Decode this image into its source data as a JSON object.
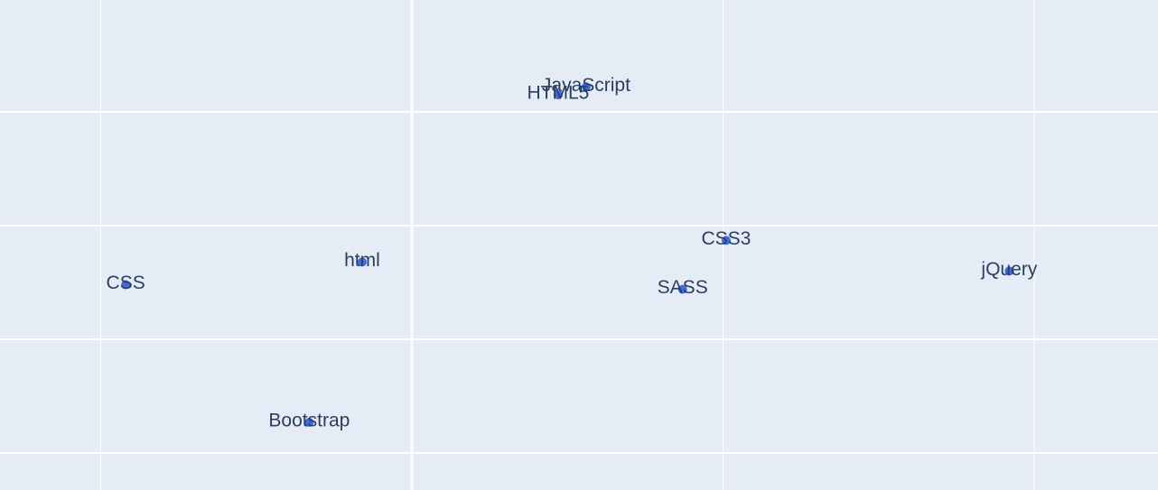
{
  "chart_data": {
    "type": "scatter",
    "labels": [
      "JavaScript",
      "HTML5",
      "CSS3",
      "SASS",
      "jQuery",
      "html",
      "CSS",
      "Bootstrap"
    ],
    "x": [
      0.56,
      0.47,
      1.01,
      0.87,
      1.92,
      -0.16,
      -0.92,
      -0.33
    ],
    "y": [
      1.22,
      1.15,
      -0.13,
      -0.56,
      -0.4,
      -0.32,
      -0.52,
      -1.73
    ],
    "color": "#4169e1",
    "xlim": [
      -1.324,
      2.398
    ],
    "ylim": [
      -2.325,
      1.984
    ],
    "xticks": [
      -1,
      0,
      1,
      2
    ],
    "yticks": [
      -2,
      -1,
      0,
      1
    ],
    "grid": true
  }
}
